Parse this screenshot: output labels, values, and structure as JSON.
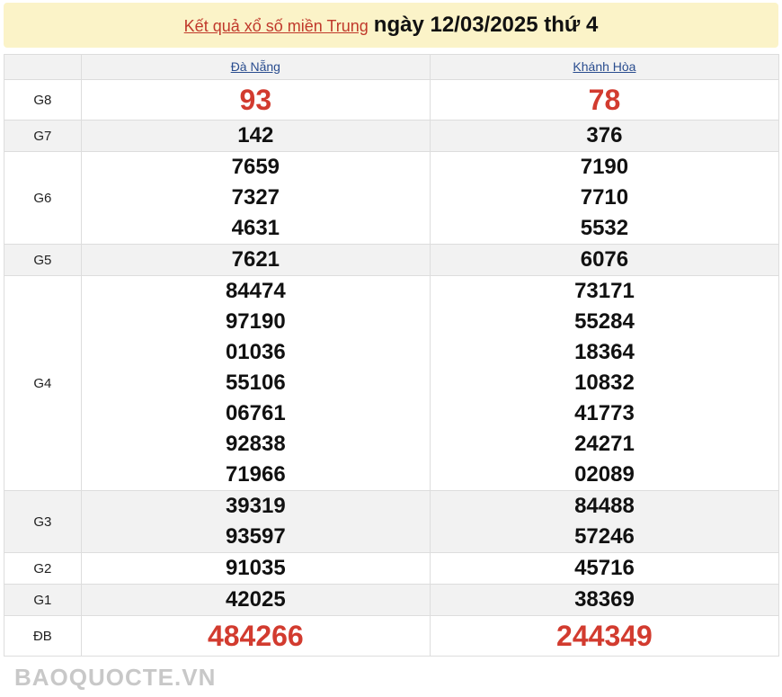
{
  "header": {
    "link": "Kết quả xổ số miền Trung",
    "date": "ngày 12/03/2025 thứ 4"
  },
  "columns": [
    "Đà Nẵng",
    "Khánh Hòa"
  ],
  "rows": [
    {
      "label": "G8",
      "big": true,
      "values": [
        [
          "93"
        ],
        [
          "78"
        ]
      ]
    },
    {
      "label": "G7",
      "values": [
        [
          "142"
        ],
        [
          "376"
        ]
      ]
    },
    {
      "label": "G6",
      "values": [
        [
          "7659",
          "7327",
          "4631"
        ],
        [
          "7190",
          "7710",
          "5532"
        ]
      ]
    },
    {
      "label": "G5",
      "values": [
        [
          "7621"
        ],
        [
          "6076"
        ]
      ]
    },
    {
      "label": "G4",
      "values": [
        [
          "84474",
          "97190",
          "01036",
          "55106",
          "06761",
          "92838",
          "71966"
        ],
        [
          "73171",
          "55284",
          "18364",
          "10832",
          "41773",
          "24271",
          "02089"
        ]
      ]
    },
    {
      "label": "G3",
      "values": [
        [
          "39319",
          "93597"
        ],
        [
          "84488",
          "57246"
        ]
      ]
    },
    {
      "label": "G2",
      "values": [
        [
          "91035"
        ],
        [
          "45716"
        ]
      ]
    },
    {
      "label": "G1",
      "values": [
        [
          "42025"
        ],
        [
          "38369"
        ]
      ]
    },
    {
      "label": "ĐB",
      "big": true,
      "values": [
        [
          "484266"
        ],
        [
          "244349"
        ]
      ]
    }
  ],
  "watermark": "BAOQUOCTE.VN",
  "colors": {
    "accent": "#d23b2f",
    "title_bg": "#fbf3c8",
    "link": "#2a4d8f"
  }
}
